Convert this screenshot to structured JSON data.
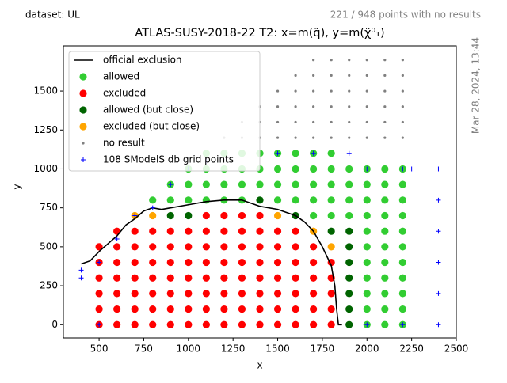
{
  "chart_data": {
    "type": "scatter",
    "title": "ATLAS-SUSY-2018-22 T2: x=m(q̃), y=m(χ̃⁰₁)",
    "dataset_label": "dataset: UL",
    "no_result_note": "221 / 948 points with no results",
    "timestamp": "Mar 28, 2024, 13:44",
    "x_label": "x",
    "y_label": "y",
    "xlim": [
      300,
      2500
    ],
    "ylim": [
      -85,
      1790
    ],
    "xticks": [
      500,
      750,
      1000,
      1250,
      1500,
      1750,
      2000,
      2250,
      2500
    ],
    "yticks": [
      0,
      250,
      500,
      750,
      1000,
      1250,
      1500
    ],
    "legend": "upper left",
    "series": [
      {
        "name": "official exclusion",
        "color": "#000000",
        "marker": "line",
        "x": [
          400,
          450,
          500,
          550,
          600,
          650,
          700,
          750,
          800,
          850,
          900,
          1000,
          1100,
          1200,
          1300,
          1350,
          1400,
          1500,
          1600,
          1650,
          1700,
          1750,
          1800,
          1820,
          1830,
          1840,
          1860
        ],
        "y": [
          390,
          410,
          470,
          520,
          570,
          640,
          680,
          730,
          750,
          740,
          750,
          770,
          790,
          800,
          800,
          780,
          760,
          740,
          700,
          660,
          600,
          500,
          380,
          250,
          100,
          0,
          0
        ]
      },
      {
        "name": "allowed",
        "color": "#32cd32",
        "marker": "circle",
        "x": [
          2000,
          2100,
          2200,
          2000,
          2100,
          2200,
          2000,
          2100,
          2200,
          2000,
          2100,
          2200,
          2000,
          2100,
          2200,
          2000,
          2100,
          2200,
          2000,
          2100,
          2200,
          1700,
          1800,
          1900,
          2000,
          2100,
          2200,
          800,
          900,
          1000,
          1100,
          1200,
          1300,
          1500,
          1600,
          1700,
          1800,
          1900,
          2000,
          2100,
          2200,
          900,
          1000,
          1100,
          1200,
          1300,
          1400,
          1500,
          1600,
          1700,
          1800,
          1900,
          2000,
          2100,
          2200,
          1000,
          1100,
          1200,
          1300,
          1400,
          1500,
          1600,
          1700,
          1800,
          1900,
          2000,
          2100,
          2200,
          1100,
          1200,
          1300,
          1400,
          1500,
          1600,
          1700,
          1800
        ],
        "y": [
          0,
          0,
          0,
          100,
          100,
          100,
          200,
          200,
          200,
          300,
          300,
          300,
          400,
          400,
          400,
          500,
          500,
          500,
          600,
          600,
          600,
          700,
          700,
          700,
          700,
          700,
          700,
          800,
          800,
          800,
          800,
          800,
          800,
          800,
          800,
          800,
          800,
          800,
          800,
          800,
          800,
          900,
          900,
          900,
          900,
          900,
          900,
          900,
          900,
          900,
          900,
          900,
          900,
          900,
          900,
          1000,
          1000,
          1000,
          1000,
          1000,
          1000,
          1000,
          1000,
          1000,
          1000,
          1000,
          1000,
          1000,
          1100,
          1100,
          1100,
          1100,
          1100,
          1100,
          1100,
          1100
        ]
      },
      {
        "name": "excluded",
        "color": "#ff0000",
        "marker": "circle",
        "x": [
          500,
          600,
          700,
          800,
          900,
          1000,
          1100,
          1200,
          1300,
          1400,
          1500,
          1600,
          1700,
          1800,
          500,
          600,
          700,
          800,
          900,
          1000,
          1100,
          1200,
          1300,
          1400,
          1500,
          1600,
          1700,
          1800,
          500,
          600,
          700,
          800,
          900,
          1000,
          1100,
          1200,
          1300,
          1400,
          1500,
          1600,
          1700,
          1800,
          500,
          600,
          700,
          800,
          900,
          1000,
          1100,
          1200,
          1300,
          1400,
          1500,
          1600,
          1700,
          1800,
          500,
          600,
          700,
          800,
          900,
          1000,
          1100,
          1200,
          1300,
          1400,
          1500,
          1600,
          1700,
          1800,
          500,
          600,
          700,
          800,
          900,
          1000,
          1100,
          1200,
          1300,
          1400,
          1500,
          1600,
          1700,
          600,
          700,
          800,
          900,
          1000,
          1100,
          1200,
          1300,
          1400,
          1500,
          1600,
          1100,
          1200,
          1300,
          1400
        ],
        "y": [
          0,
          0,
          0,
          0,
          0,
          0,
          0,
          0,
          0,
          0,
          0,
          0,
          0,
          0,
          100,
          100,
          100,
          100,
          100,
          100,
          100,
          100,
          100,
          100,
          100,
          100,
          100,
          100,
          200,
          200,
          200,
          200,
          200,
          200,
          200,
          200,
          200,
          200,
          200,
          200,
          200,
          200,
          300,
          300,
          300,
          300,
          300,
          300,
          300,
          300,
          300,
          300,
          300,
          300,
          300,
          300,
          400,
          400,
          400,
          400,
          400,
          400,
          400,
          400,
          400,
          400,
          400,
          400,
          400,
          400,
          500,
          500,
          500,
          500,
          500,
          500,
          500,
          500,
          500,
          500,
          500,
          500,
          500,
          600,
          600,
          600,
          600,
          600,
          600,
          600,
          600,
          600,
          600,
          600,
          700,
          700,
          700,
          700
        ]
      },
      {
        "name": "allowed (but close)",
        "color": "#006400",
        "marker": "circle",
        "x": [
          1900,
          1900,
          1900,
          1900,
          1900,
          1900,
          1800,
          1900,
          900,
          1000,
          1600,
          1400
        ],
        "y": [
          0,
          100,
          200,
          300,
          400,
          500,
          600,
          600,
          700,
          700,
          700,
          800
        ]
      },
      {
        "name": "excluded (but close)",
        "color": "#ffa500",
        "marker": "circle",
        "x": [
          1800,
          1700,
          700,
          800,
          1500
        ],
        "y": [
          500,
          600,
          700,
          700,
          700
        ]
      },
      {
        "name": "no result",
        "color": "#808080",
        "marker": "dot",
        "x": [
          1200,
          1300,
          1400,
          1500,
          1600,
          1700,
          1800,
          1900,
          2000,
          2100,
          2200,
          1300,
          1400,
          1500,
          1600,
          1700,
          1800,
          1900,
          2000,
          2100,
          2200,
          1400,
          1500,
          1600,
          1700,
          1800,
          1900,
          2000,
          2100,
          2200,
          1500,
          1600,
          1700,
          1800,
          1900,
          2000,
          2100,
          2200,
          1600,
          1700,
          1800,
          1900,
          2000,
          2100,
          2200,
          1700,
          1800,
          1900,
          2000,
          2100,
          2200
        ],
        "y": [
          1200,
          1200,
          1200,
          1200,
          1200,
          1200,
          1200,
          1200,
          1200,
          1200,
          1200,
          1300,
          1300,
          1300,
          1300,
          1300,
          1300,
          1300,
          1300,
          1300,
          1300,
          1400,
          1400,
          1400,
          1400,
          1400,
          1400,
          1400,
          1400,
          1400,
          1500,
          1500,
          1500,
          1500,
          1500,
          1500,
          1500,
          1500,
          1600,
          1600,
          1600,
          1600,
          1600,
          1600,
          1600,
          1700,
          1700,
          1700,
          1700,
          1700,
          1700
        ]
      },
      {
        "name": "108 SModelS db grid points",
        "color": "#0000ff",
        "marker": "plus",
        "x": [
          400,
          400,
          2400,
          2400,
          2400,
          2400,
          2400,
          2400,
          500,
          500,
          600,
          700,
          800,
          900,
          1000,
          1100,
          1500,
          1700,
          1900,
          2000,
          2200,
          2250,
          2000,
          2200
        ],
        "y": [
          300,
          350,
          0,
          200,
          400,
          600,
          800,
          1000,
          0,
          400,
          550,
          700,
          750,
          900,
          1000,
          1050,
          1100,
          1100,
          1100,
          1000,
          1000,
          1000,
          0,
          0
        ]
      }
    ]
  }
}
